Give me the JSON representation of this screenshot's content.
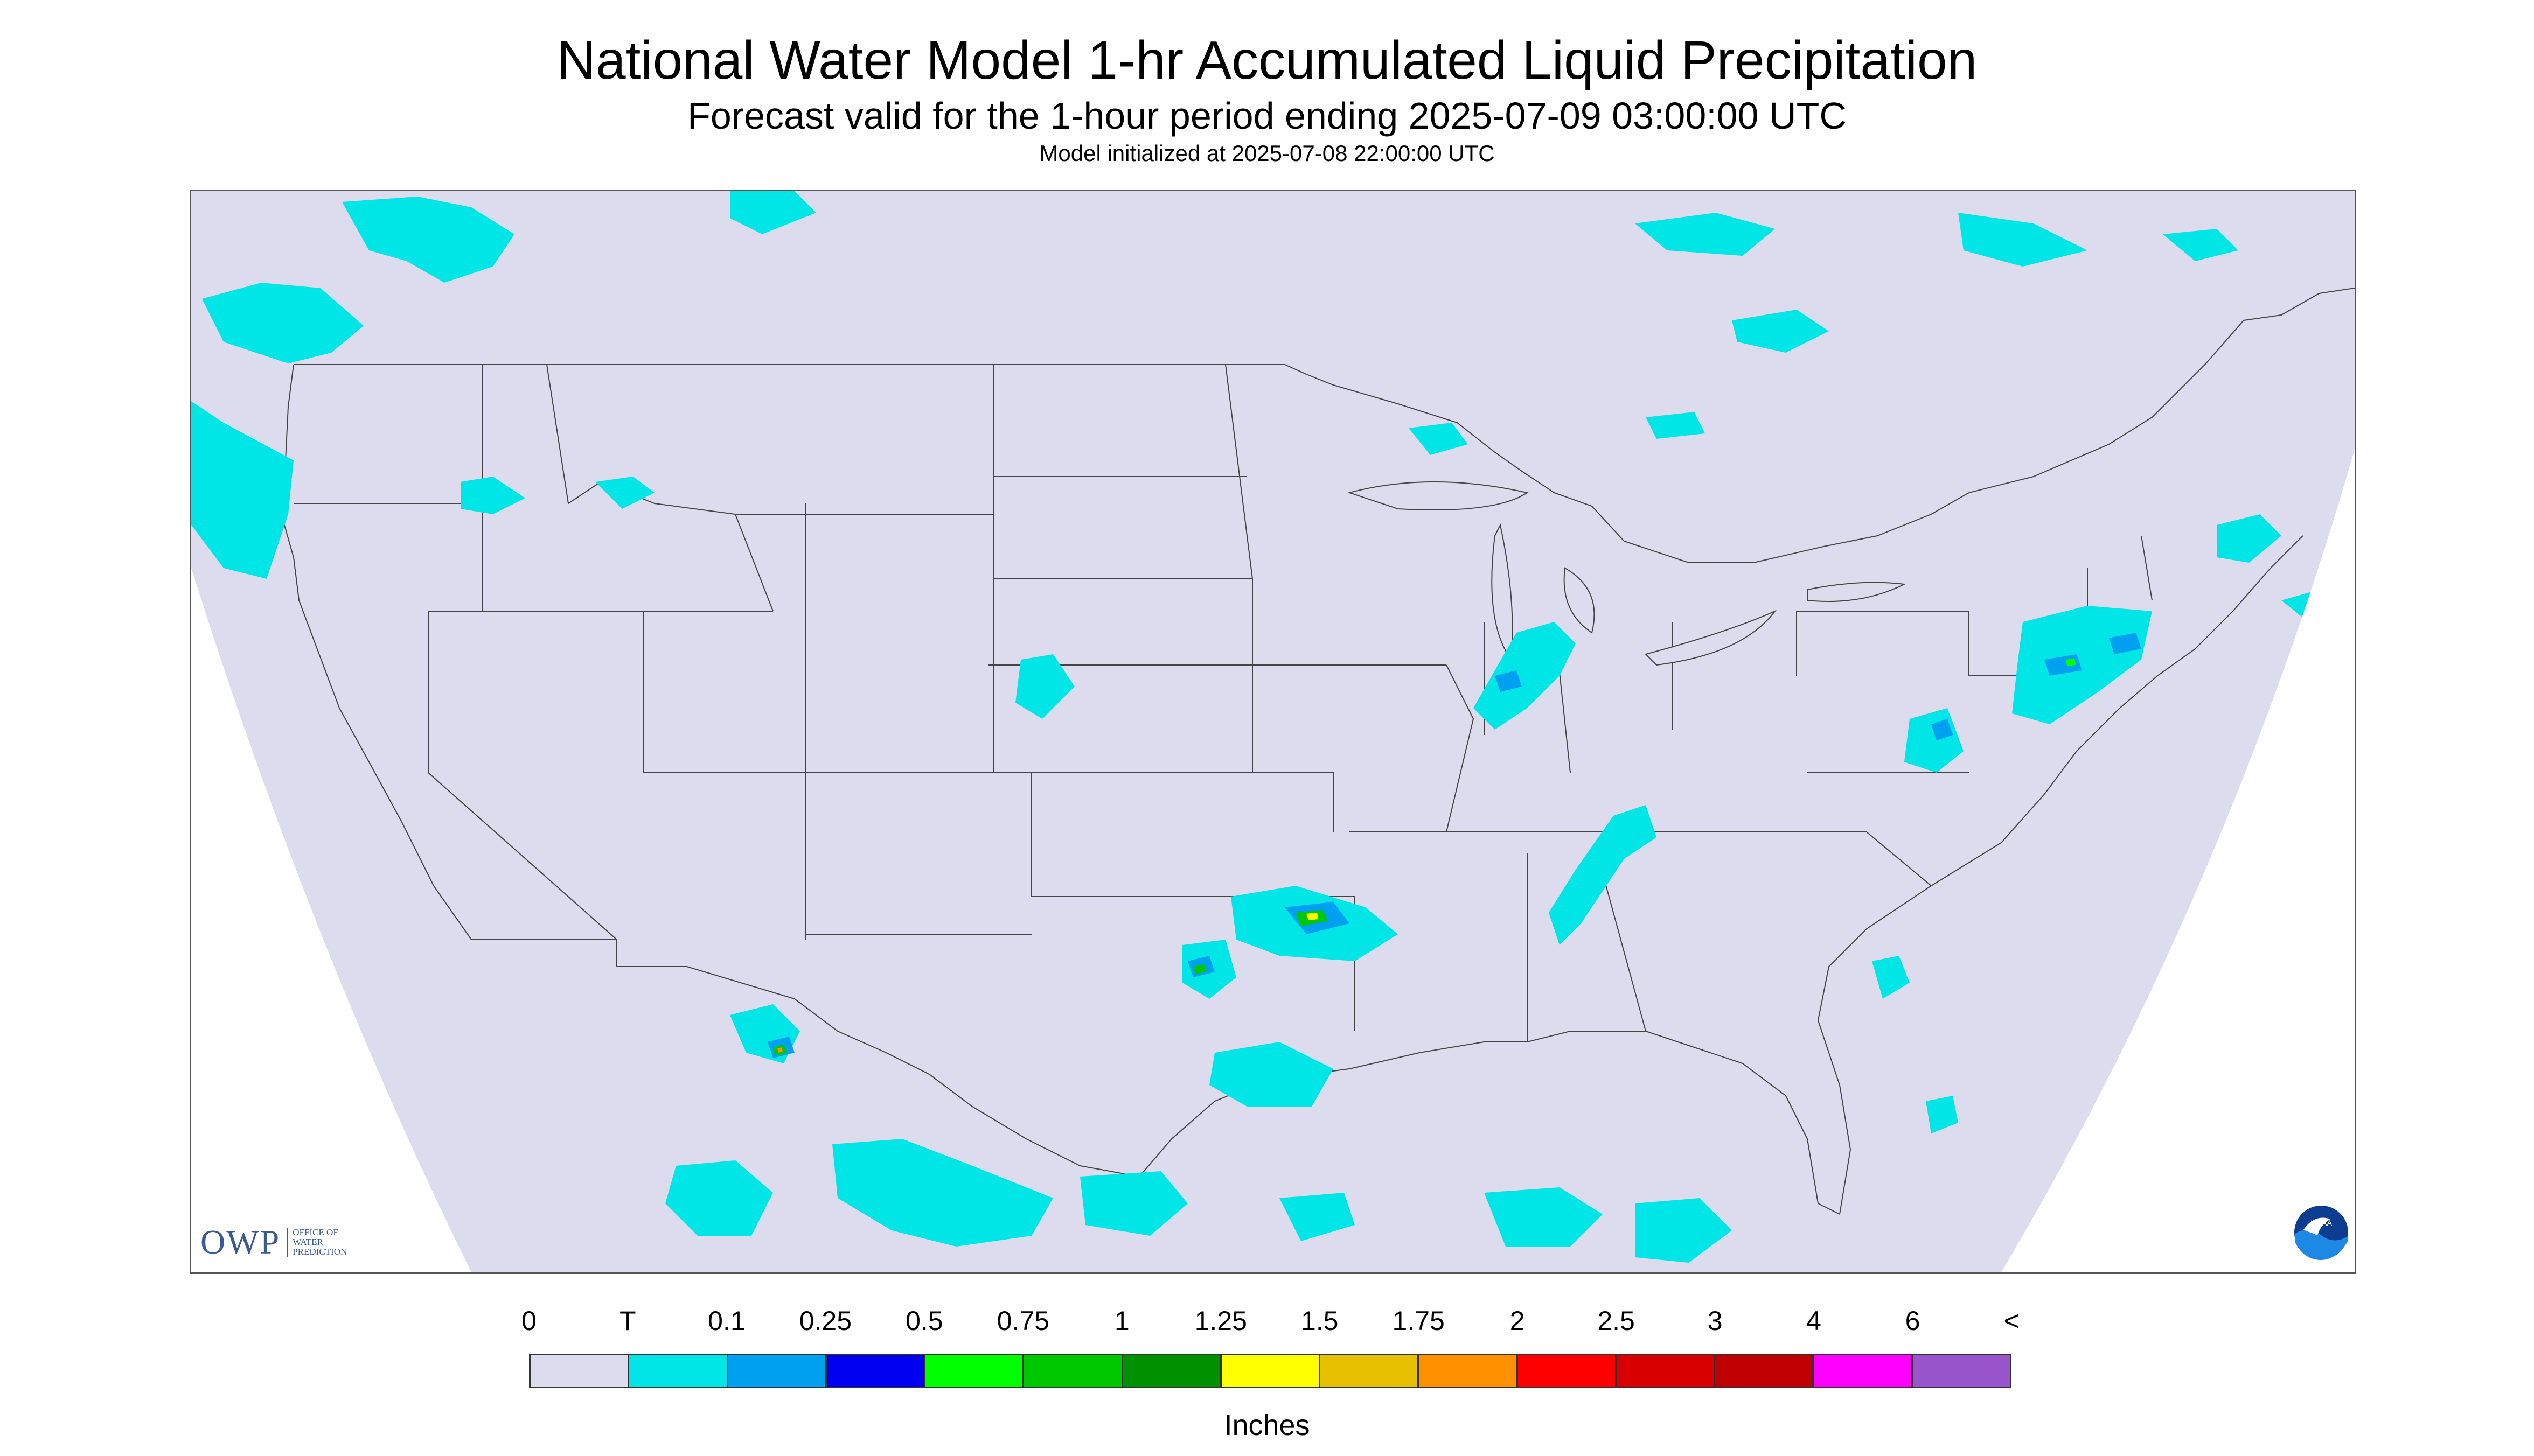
{
  "header": {
    "title": "National Water Model 1-hr Accumulated Liquid Precipitation",
    "subtitle": "Forecast valid for the 1-hour period ending 2025-07-09 03:00:00 UTC",
    "init": "Model initialized at 2025-07-08 22:00:00 UTC"
  },
  "map": {
    "region": "Continental United States",
    "background_color": "#dcdcee",
    "outside_projection_color": "#ffffff",
    "boundary_color": "#444444"
  },
  "logos": {
    "owp_text": "OWP",
    "owp_line1": "OFFICE OF",
    "owp_line2": "WATER",
    "owp_line3": "PREDICTION",
    "noaa_text": "NOAA"
  },
  "legend": {
    "unit": "Inches",
    "labels": [
      "0",
      "T",
      "0.1",
      "0.25",
      "0.5",
      "0.75",
      "1",
      "1.25",
      "1.5",
      "1.75",
      "2",
      "2.5",
      "3",
      "4",
      "6",
      "<"
    ],
    "colors": [
      "#dcdcee",
      "#00e5e5",
      "#00a0f0",
      "#0000f0",
      "#00ff00",
      "#00c800",
      "#009000",
      "#ffff00",
      "#e6c000",
      "#ff9000",
      "#ff0000",
      "#d80000",
      "#c00000",
      "#ff00ff",
      "#9955cc"
    ]
  }
}
